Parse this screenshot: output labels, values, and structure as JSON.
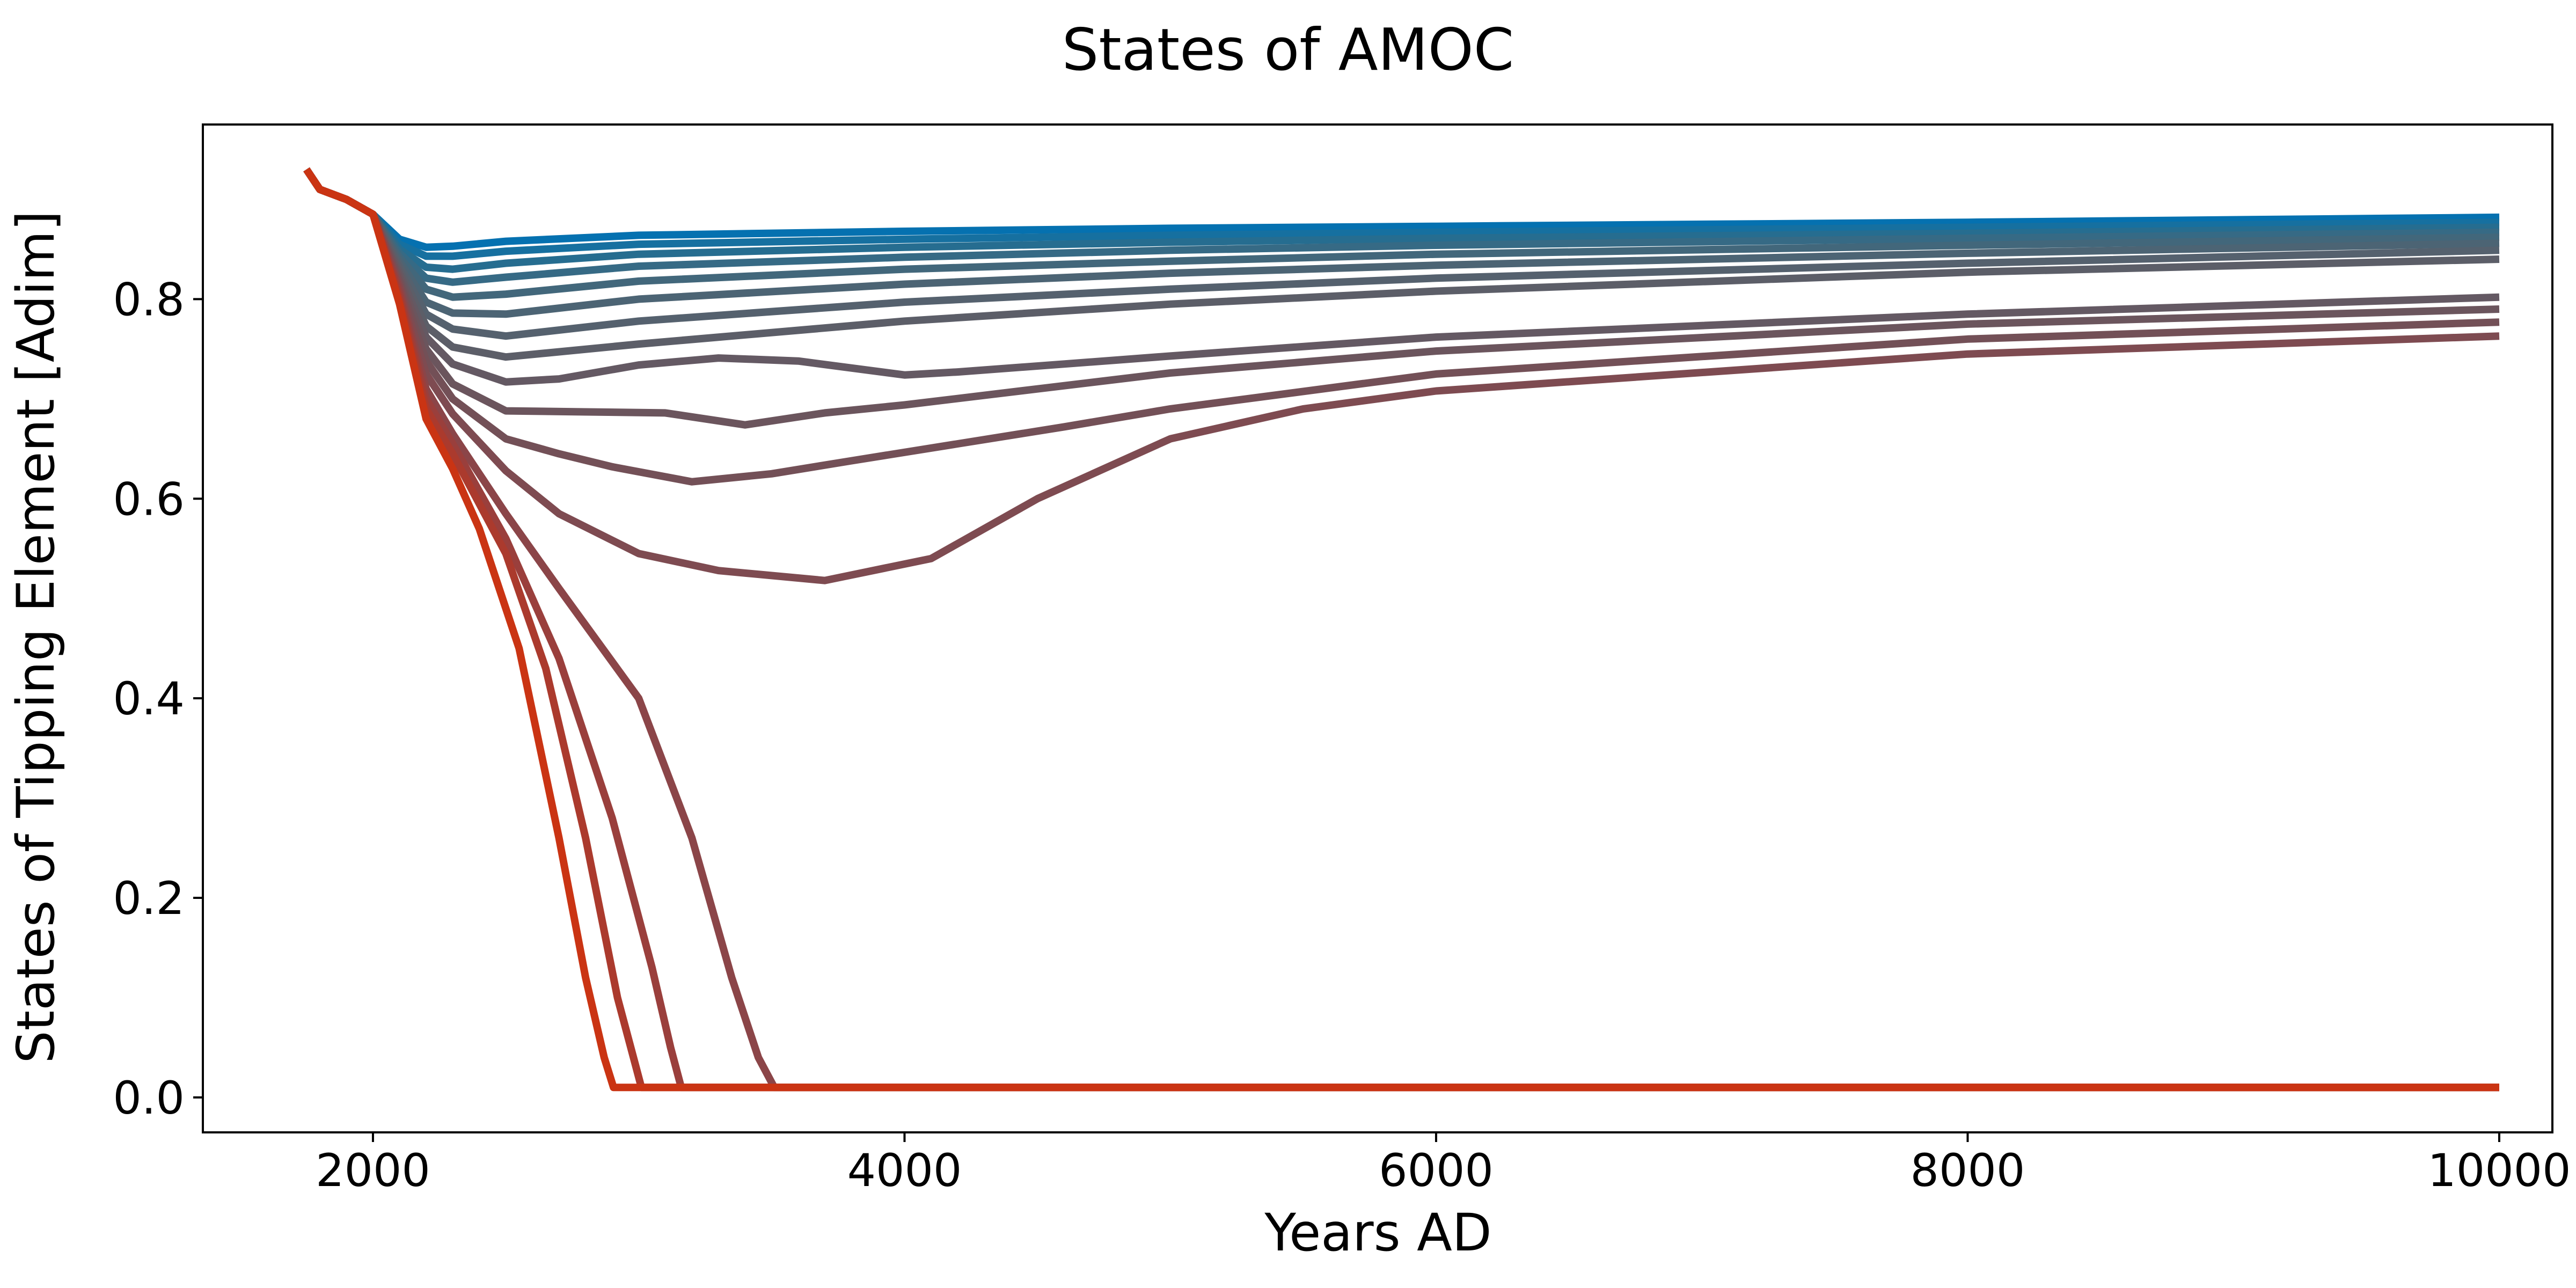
{
  "chart_data": {
    "type": "line",
    "title": "States of AMOC",
    "xlabel": "Years AD",
    "ylabel": "States of Tipping Element [Adim]",
    "xlim": [
      1360,
      10200
    ],
    "ylim": [
      -0.035,
      0.975
    ],
    "xticks": [
      2000,
      4000,
      6000,
      8000,
      10000
    ],
    "xtick_labels": [
      "2000",
      "4000",
      "6000",
      "8000",
      "10000"
    ],
    "yticks": [
      0.0,
      0.2,
      0.4,
      0.6,
      0.8
    ],
    "ytick_labels": [
      "0.0",
      "0.2",
      "0.4",
      "0.6",
      "0.8"
    ],
    "grid": false,
    "legend": "none",
    "color_start": "#0571b0",
    "color_end": "#ca3413",
    "series": [
      {
        "color": "#0571b0",
        "x": [
          1750,
          1800,
          1900,
          2000,
          2100,
          2200,
          2300,
          2500,
          3000,
          4000,
          5000,
          6000,
          8000,
          10000
        ],
        "y": [
          0.93,
          0.91,
          0.9,
          0.885,
          0.86,
          0.852,
          0.853,
          0.858,
          0.864,
          0.868,
          0.871,
          0.873,
          0.877,
          0.882
        ]
      },
      {
        "color": "#1670a0",
        "x": [
          1750,
          1800,
          1900,
          2000,
          2100,
          2200,
          2300,
          2500,
          3000,
          4000,
          5000,
          6000,
          8000,
          10000
        ],
        "y": [
          0.93,
          0.91,
          0.9,
          0.885,
          0.855,
          0.843,
          0.843,
          0.848,
          0.855,
          0.86,
          0.864,
          0.867,
          0.872,
          0.877
        ]
      },
      {
        "color": "#266d90",
        "x": [
          1750,
          1800,
          1900,
          2000,
          2100,
          2200,
          2300,
          2500,
          3000,
          4000,
          5000,
          6000,
          8000,
          10000
        ],
        "y": [
          0.93,
          0.91,
          0.9,
          0.885,
          0.85,
          0.832,
          0.83,
          0.836,
          0.845,
          0.852,
          0.857,
          0.861,
          0.866,
          0.872
        ]
      },
      {
        "color": "#366a85",
        "x": [
          1750,
          1800,
          1900,
          2000,
          2100,
          2200,
          2300,
          2500,
          3000,
          4000,
          5000,
          6000,
          8000,
          10000
        ],
        "y": [
          0.93,
          0.91,
          0.9,
          0.885,
          0.846,
          0.821,
          0.817,
          0.822,
          0.833,
          0.842,
          0.849,
          0.854,
          0.861,
          0.867
        ]
      },
      {
        "color": "#42677b",
        "x": [
          1750,
          1800,
          1900,
          2000,
          2100,
          2200,
          2300,
          2500,
          3000,
          4000,
          5000,
          6000,
          8000,
          10000
        ],
        "y": [
          0.93,
          0.91,
          0.9,
          0.885,
          0.842,
          0.81,
          0.802,
          0.805,
          0.818,
          0.83,
          0.838,
          0.845,
          0.854,
          0.862
        ]
      },
      {
        "color": "#4c6474",
        "x": [
          1750,
          1800,
          1900,
          2000,
          2100,
          2200,
          2300,
          2500,
          3000,
          4000,
          5000,
          6000,
          8000,
          10000
        ],
        "y": [
          0.93,
          0.91,
          0.9,
          0.885,
          0.838,
          0.797,
          0.786,
          0.785,
          0.8,
          0.815,
          0.826,
          0.834,
          0.846,
          0.856
        ]
      },
      {
        "color": "#55616e",
        "x": [
          1750,
          1800,
          1900,
          2000,
          2100,
          2200,
          2300,
          2500,
          3000,
          4000,
          5000,
          6000,
          8000,
          10000
        ],
        "y": [
          0.93,
          0.91,
          0.9,
          0.885,
          0.834,
          0.785,
          0.77,
          0.763,
          0.778,
          0.797,
          0.81,
          0.821,
          0.836,
          0.849
        ]
      },
      {
        "color": "#5c5e68",
        "x": [
          1750,
          1800,
          1900,
          2000,
          2100,
          2200,
          2300,
          2500,
          3000,
          4000,
          5000,
          6000,
          8000,
          10000
        ],
        "y": [
          0.93,
          0.91,
          0.9,
          0.885,
          0.83,
          0.773,
          0.752,
          0.742,
          0.755,
          0.778,
          0.795,
          0.808,
          0.827,
          0.84
        ]
      },
      {
        "color": "#645963",
        "x": [
          1750,
          1800,
          1900,
          2000,
          2100,
          2200,
          2300,
          2500,
          2700,
          3000,
          3300,
          3600,
          4000,
          4200,
          4600,
          5000,
          6000,
          8000,
          10000
        ],
        "y": [
          0.93,
          0.91,
          0.9,
          0.885,
          0.826,
          0.762,
          0.735,
          0.717,
          0.72,
          0.734,
          0.741,
          0.738,
          0.724,
          0.727,
          0.735,
          0.743,
          0.762,
          0.785,
          0.802
        ]
      },
      {
        "color": "#6b555d",
        "x": [
          1750,
          1800,
          1900,
          2000,
          2100,
          2200,
          2300,
          2500,
          2800,
          3100,
          3400,
          3700,
          4000,
          4500,
          5000,
          6000,
          8000,
          10000
        ],
        "y": [
          0.93,
          0.91,
          0.9,
          0.885,
          0.822,
          0.75,
          0.715,
          0.688,
          0.687,
          0.686,
          0.674,
          0.686,
          0.694,
          0.71,
          0.726,
          0.748,
          0.775,
          0.79
        ]
      },
      {
        "color": "#735057",
        "x": [
          1750,
          1800,
          1900,
          2000,
          2100,
          2200,
          2300,
          2500,
          2700,
          2900,
          3200,
          3500,
          3800,
          4200,
          4600,
          5000,
          6000,
          8000,
          10000
        ],
        "y": [
          0.93,
          0.91,
          0.9,
          0.885,
          0.818,
          0.738,
          0.7,
          0.66,
          0.645,
          0.632,
          0.617,
          0.625,
          0.638,
          0.655,
          0.672,
          0.69,
          0.725,
          0.76,
          0.777
        ]
      },
      {
        "color": "#7e4b51",
        "x": [
          1750,
          1800,
          1900,
          2000,
          2100,
          2200,
          2300,
          2500,
          2700,
          3000,
          3300,
          3700,
          4100,
          4500,
          5000,
          5500,
          6000,
          8000,
          10000
        ],
        "y": [
          0.93,
          0.91,
          0.9,
          0.885,
          0.814,
          0.725,
          0.685,
          0.628,
          0.585,
          0.545,
          0.528,
          0.518,
          0.54,
          0.6,
          0.66,
          0.69,
          0.708,
          0.745,
          0.763
        ]
      },
      {
        "color": "#8b4548",
        "x": [
          1750,
          1800,
          1900,
          2000,
          2100,
          2200,
          2300,
          2500,
          2700,
          3000,
          3200,
          3350,
          3450,
          3510,
          3520,
          4000,
          6000,
          8000,
          10000
        ],
        "y": [
          0.93,
          0.91,
          0.9,
          0.885,
          0.81,
          0.71,
          0.665,
          0.585,
          0.51,
          0.4,
          0.26,
          0.12,
          0.04,
          0.01,
          0.01,
          0.01,
          0.01,
          0.01,
          0.01
        ]
      },
      {
        "color": "#9a3f3c",
        "x": [
          1750,
          1800,
          1900,
          2000,
          2100,
          2200,
          2300,
          2500,
          2700,
          2900,
          3050,
          3120,
          3160,
          3170,
          4000,
          6000,
          8000,
          10000
        ],
        "y": [
          0.93,
          0.91,
          0.9,
          0.885,
          0.805,
          0.7,
          0.655,
          0.56,
          0.44,
          0.28,
          0.13,
          0.05,
          0.01,
          0.01,
          0.01,
          0.01,
          0.01,
          0.01
        ]
      },
      {
        "color": "#ab3a2d",
        "x": [
          1750,
          1800,
          1900,
          2000,
          2100,
          2200,
          2300,
          2500,
          2650,
          2800,
          2920,
          2990,
          3010,
          4000,
          6000,
          8000,
          10000
        ],
        "y": [
          0.93,
          0.91,
          0.9,
          0.885,
          0.8,
          0.69,
          0.645,
          0.545,
          0.43,
          0.26,
          0.1,
          0.03,
          0.01,
          0.01,
          0.01,
          0.01,
          0.01
        ]
      },
      {
        "color": "#ca3413",
        "x": [
          1750,
          1800,
          1900,
          2000,
          2100,
          2200,
          2300,
          2400,
          2550,
          2700,
          2800,
          2870,
          2905,
          2920,
          4000,
          6000,
          8000,
          10000
        ],
        "y": [
          0.93,
          0.91,
          0.9,
          0.885,
          0.795,
          0.68,
          0.63,
          0.57,
          0.45,
          0.26,
          0.12,
          0.04,
          0.01,
          0.01,
          0.01,
          0.01,
          0.01,
          0.01
        ]
      }
    ]
  }
}
